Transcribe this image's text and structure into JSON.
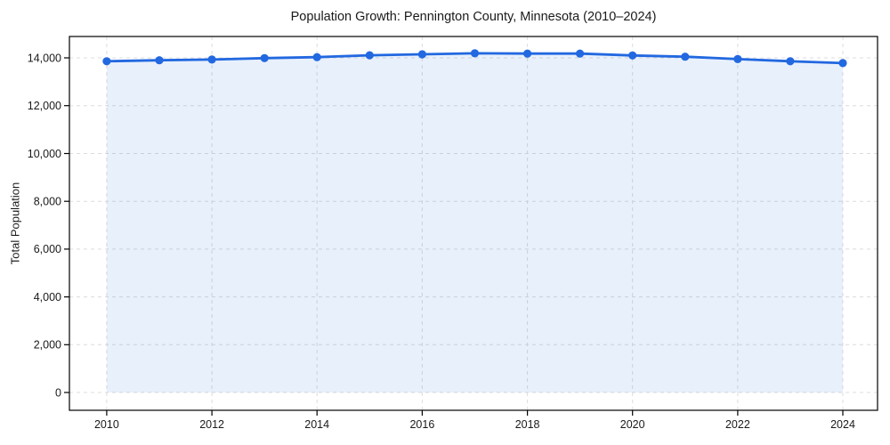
{
  "page": {
    "background": "#ffffff"
  },
  "chart_data": {
    "type": "line",
    "title": "Population Growth: Pennington County, Minnesota (2010–2024)",
    "xlabel": "",
    "ylabel": "Total Population",
    "x": [
      2010,
      2011,
      2012,
      2013,
      2014,
      2015,
      2016,
      2017,
      2018,
      2019,
      2020,
      2021,
      2022,
      2023,
      2024
    ],
    "series": [
      {
        "name": "Total Population",
        "values": [
          13860,
          13900,
          13930,
          13990,
          14030,
          14110,
          14150,
          14190,
          14180,
          14180,
          14100,
          14050,
          13950,
          13860,
          13780
        ]
      }
    ],
    "markers": true,
    "marker_radius": 4.6,
    "line_width": 2.8,
    "area_fill": true,
    "area_baseline": 0,
    "grid": true,
    "grid_dashed": true,
    "legend_position": "none",
    "xlim": [
      2009.29,
      2024.66
    ],
    "ylim": [
      -745,
      14895
    ],
    "xticks": [
      2010,
      2012,
      2014,
      2016,
      2018,
      2020,
      2022,
      2024
    ],
    "xtick_labels": [
      "2010",
      "2012",
      "2014",
      "2016",
      "2018",
      "2020",
      "2022",
      "2024"
    ],
    "yticks": [
      0,
      2000,
      4000,
      6000,
      8000,
      10000,
      12000,
      14000
    ],
    "ytick_labels": [
      "0",
      "2,000",
      "4,000",
      "6,000",
      "8,000",
      "10,000",
      "12,000",
      "14,000"
    ],
    "colors": {
      "line": "#2268e0",
      "fill": "rgba(34, 104, 224, 0.10)",
      "grid": "#dcdcdc",
      "spine": "#000000",
      "text": "#1a1a1a"
    }
  }
}
